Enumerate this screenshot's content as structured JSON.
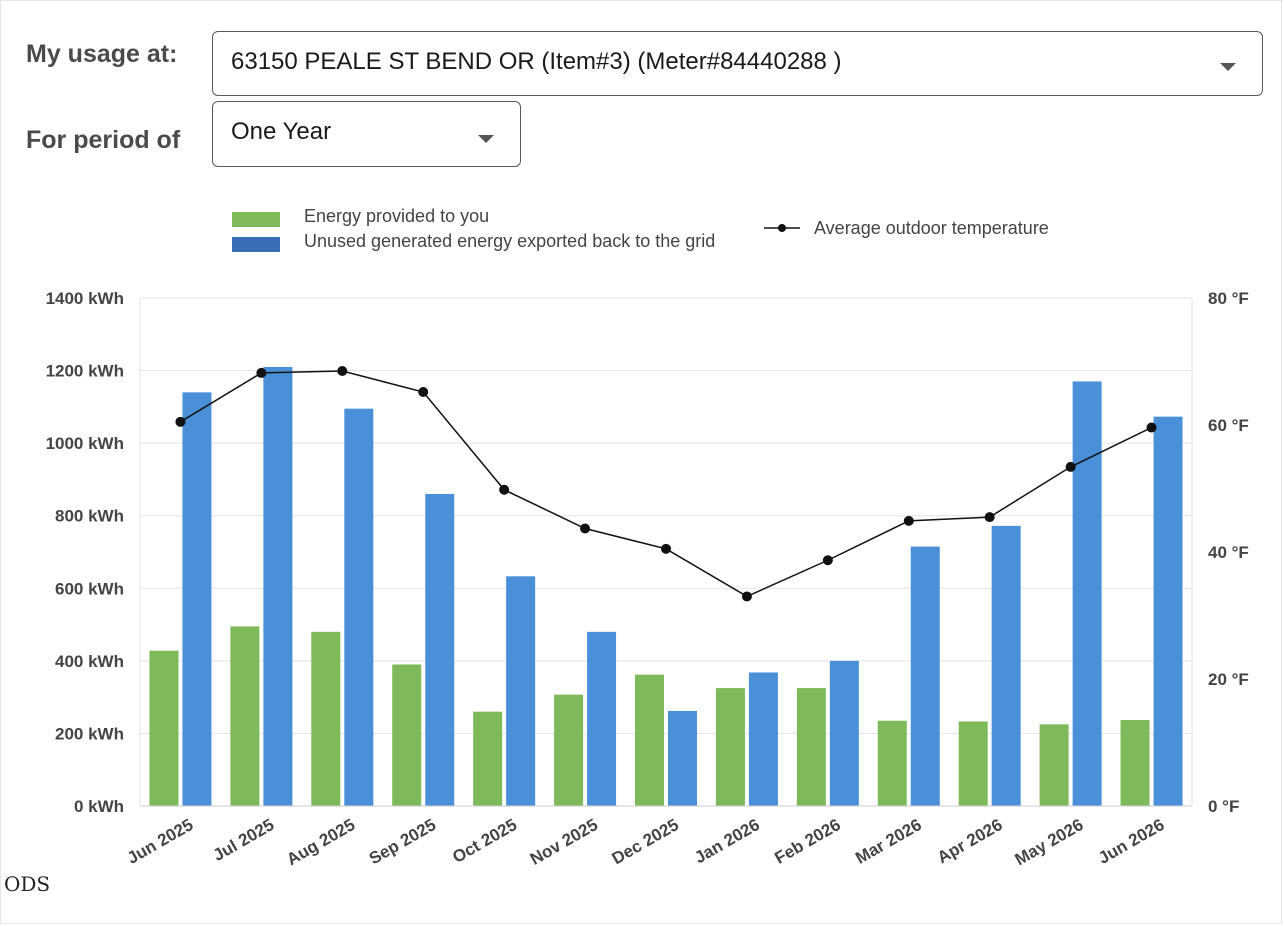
{
  "filters": {
    "usage_label": "My usage at:",
    "usage_value": "63150 PEALE ST BEND OR (Item#3) (Meter#84440288 )",
    "period_label": "For period of",
    "period_value": "One Year"
  },
  "legend": {
    "energy_provided": "Energy provided to you",
    "exported": "Unused generated energy exported back to the grid",
    "temperature": "Average outdoor temperature"
  },
  "watermark": "ODS",
  "colors": {
    "energy_provided": "#7fba5a",
    "exported": "#4a90d9",
    "temperature": "#111111",
    "gridline": "#e3e3e3"
  },
  "chart_data": {
    "type": "bar",
    "categories": [
      "Jun 2025",
      "Jul 2025",
      "Aug 2025",
      "Sep 2025",
      "Oct 2025",
      "Nov 2025",
      "Dec 2025",
      "Jan 2026",
      "Feb 2026",
      "Mar 2026",
      "Apr 2026",
      "May 2026",
      "Jun 2026"
    ],
    "series": [
      {
        "name": "Energy provided to you",
        "type": "bar",
        "axis": "left",
        "values": [
          428,
          495,
          480,
          390,
          260,
          307,
          362,
          325,
          325,
          235,
          233,
          225,
          237
        ]
      },
      {
        "name": "Unused generated energy exported back to the grid",
        "type": "bar",
        "axis": "left",
        "values": [
          1140,
          1210,
          1095,
          860,
          633,
          480,
          262,
          368,
          400,
          715,
          772,
          1170,
          1073
        ]
      },
      {
        "name": "Average outdoor temperature",
        "type": "line",
        "axis": "right",
        "values": [
          60.5,
          68.2,
          68.5,
          65.2,
          49.8,
          43.7,
          40.5,
          33,
          38.7,
          44.9,
          45.5,
          53.4,
          59.6
        ]
      }
    ],
    "y_left": {
      "ylim": [
        0,
        1400
      ],
      "ticks": [
        0,
        200,
        400,
        600,
        800,
        1000,
        1200,
        1400
      ],
      "tick_labels": [
        "0 kWh",
        "200 kWh",
        "400 kWh",
        "600 kWh",
        "800 kWh",
        "1000 kWh",
        "1200 kWh",
        "1400 kWh"
      ]
    },
    "y_right": {
      "ylim": [
        0,
        80
      ],
      "ticks": [
        0,
        20,
        40,
        60,
        80
      ],
      "tick_labels": [
        "0 °F",
        "20 °F",
        "40 °F",
        "60 °F",
        "80 °F"
      ]
    },
    "grid": true,
    "legend_position": "top"
  }
}
